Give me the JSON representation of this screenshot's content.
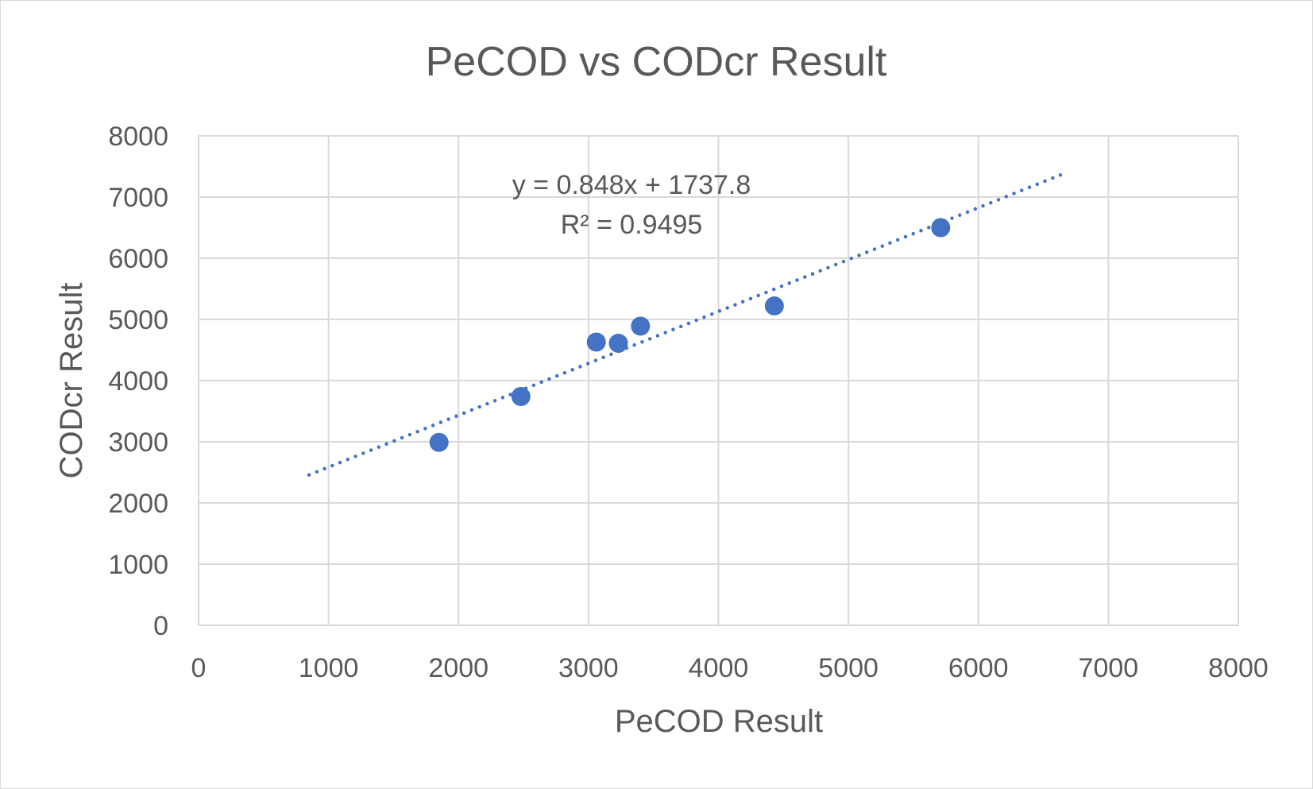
{
  "chart_data": {
    "type": "scatter",
    "title": "PeCOD vs CODcr Result",
    "xlabel": "PeCOD Result",
    "ylabel": "CODcr Result",
    "xlim": [
      0,
      8000
    ],
    "ylim": [
      0,
      8000
    ],
    "xticks": [
      "0",
      "1000",
      "2000",
      "3000",
      "4000",
      "5000",
      "6000",
      "7000",
      "8000"
    ],
    "yticks": [
      "0",
      "1000",
      "2000",
      "3000",
      "4000",
      "5000",
      "6000",
      "7000",
      "8000"
    ],
    "grid": true,
    "legend": "none",
    "series": [
      {
        "points": [
          {
            "x": 1850,
            "y": 2990
          },
          {
            "x": 2480,
            "y": 3740
          },
          {
            "x": 3060,
            "y": 4630
          },
          {
            "x": 3230,
            "y": 4610
          },
          {
            "x": 3400,
            "y": 4890
          },
          {
            "x": 4430,
            "y": 5220
          },
          {
            "x": 5710,
            "y": 6500
          }
        ],
        "color": "#4472c4"
      }
    ],
    "trendline": {
      "type": "linear",
      "slope": 0.848,
      "intercept": 1737.8,
      "x_range": [
        850,
        6650
      ],
      "style": "dotted",
      "color": "#4472c4",
      "equation": "y = 0.848x + 1737.8",
      "r_squared": "R² = 0.9495"
    }
  }
}
